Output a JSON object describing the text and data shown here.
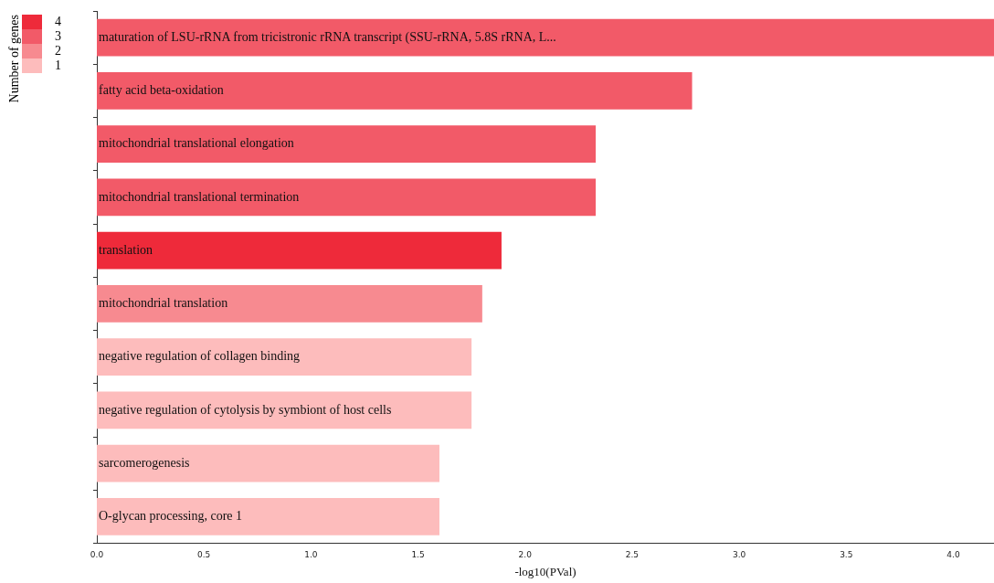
{
  "chart_data": {
    "type": "bar",
    "orientation": "horizontal",
    "xlabel": "-log10(PVal)",
    "legend_title": "Number of genes",
    "legend": "top left",
    "grid": false,
    "categories": [
      "maturation of LSU-rRNA from tricistronic rRNA transcript (SSU-rRNA, 5.8S rRNA, L...",
      "fatty acid beta-oxidation",
      "mitochondrial translational elongation",
      "mitochondrial translational termination",
      "translation",
      "mitochondrial translation",
      "negative regulation of collagen binding",
      "negative regulation of cytolysis by symbiont of host cells",
      "sarcomerogenesis",
      "O-glycan processing, core 1"
    ],
    "series": [
      {
        "name": "4",
        "color": "#ee2a3a",
        "values": [
          null,
          null,
          null,
          null,
          1.89,
          null,
          null,
          null,
          null,
          null
        ]
      },
      {
        "name": "3",
        "color": "#f25a68",
        "values": [
          4.19,
          2.78,
          2.33,
          2.33,
          null,
          null,
          null,
          null,
          null,
          null
        ]
      },
      {
        "name": "2",
        "color": "#f78a90",
        "values": [
          null,
          null,
          null,
          null,
          null,
          1.8,
          null,
          null,
          null,
          null
        ]
      },
      {
        "name": "1",
        "color": "#fdbcbc",
        "values": [
          null,
          null,
          null,
          null,
          null,
          null,
          1.75,
          1.75,
          1.6,
          1.6
        ]
      }
    ],
    "xlim": [
      0,
      4.19
    ],
    "xticks": [
      {
        "value": 0,
        "label": "0.0"
      },
      {
        "value": 0.5,
        "label": "0.5"
      },
      {
        "value": 1,
        "label": "1.0"
      },
      {
        "value": 1.5,
        "label": "1.5"
      },
      {
        "value": 2,
        "label": "2.0"
      },
      {
        "value": 2.5,
        "label": "2.5"
      },
      {
        "value": 3,
        "label": "3.0"
      },
      {
        "value": 3.5,
        "label": "3.5"
      },
      {
        "value": 4,
        "label": "4.0"
      }
    ]
  }
}
